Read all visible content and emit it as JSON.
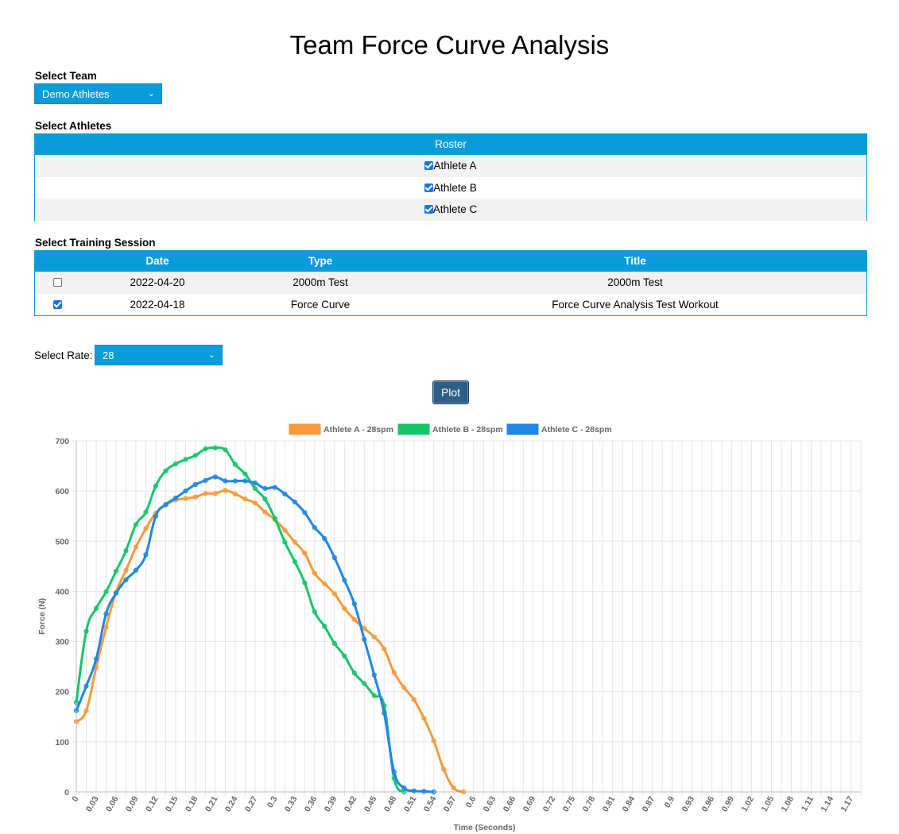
{
  "page": {
    "title": "Team Force Curve Analysis"
  },
  "team": {
    "label": "Select Team",
    "selected": "Demo Athletes"
  },
  "athletes": {
    "label": "Select Athletes",
    "header": "Roster",
    "items": [
      {
        "name": "Athlete A",
        "checked": true
      },
      {
        "name": "Athlete B",
        "checked": true
      },
      {
        "name": "Athlete C",
        "checked": true
      }
    ]
  },
  "sessions": {
    "label": "Select Training Session",
    "columns": [
      "Date",
      "Type",
      "Title"
    ],
    "rows": [
      {
        "checked": false,
        "date": "2022-04-20",
        "type": "2000m Test",
        "title": "2000m Test"
      },
      {
        "checked": true,
        "date": "2022-04-18",
        "type": "Force Curve",
        "title": "Force Curve Analysis Test Workout"
      }
    ]
  },
  "rate": {
    "label": "Select Rate:",
    "selected": "28"
  },
  "plot_button": {
    "label": "Plot"
  },
  "icons": {
    "dropdown": "chevron-down-icon",
    "checkbox": "checkbox-icon"
  },
  "chart_data": {
    "type": "line",
    "xlabel": "Time (Seconds)",
    "ylabel": "Force (N)",
    "ylim": [
      0,
      700
    ],
    "yticks": [
      0,
      100,
      200,
      300,
      400,
      500,
      600,
      700
    ],
    "x_step": 0.015,
    "x_max_index": 79,
    "xtick_every": 2,
    "legend_position": "top",
    "grid": true,
    "series": [
      {
        "name": "Athlete A - 28spm",
        "color": "#f79a3b",
        "values": [
          140,
          162,
          248,
          328,
          398,
          442,
          488,
          525,
          556,
          572,
          582,
          585,
          588,
          595,
          595,
          601,
          594,
          584,
          576,
          558,
          543,
          522,
          498,
          476,
          436,
          415,
          395,
          366,
          344,
          326,
          309,
          285,
          238,
          208,
          184,
          147,
          102,
          45,
          8,
          0
        ]
      },
      {
        "name": "Athlete B - 28spm",
        "color": "#15c56a",
        "values": [
          178,
          320,
          366,
          399,
          440,
          481,
          533,
          558,
          610,
          640,
          654,
          663,
          671,
          684,
          686,
          682,
          653,
          634,
          605,
          584,
          545,
          498,
          459,
          417,
          359,
          330,
          296,
          271,
          237,
          216,
          192,
          172,
          27,
          0
        ]
      },
      {
        "name": "Athlete C - 28spm",
        "color": "#1e86e6",
        "values": [
          162,
          211,
          265,
          355,
          396,
          423,
          442,
          473,
          550,
          573,
          586,
          600,
          613,
          621,
          628,
          620,
          620,
          620,
          616,
          605,
          607,
          594,
          578,
          557,
          527,
          505,
          467,
          422,
          375,
          304,
          233,
          157,
          40,
          8,
          2,
          1,
          0
        ]
      }
    ]
  }
}
